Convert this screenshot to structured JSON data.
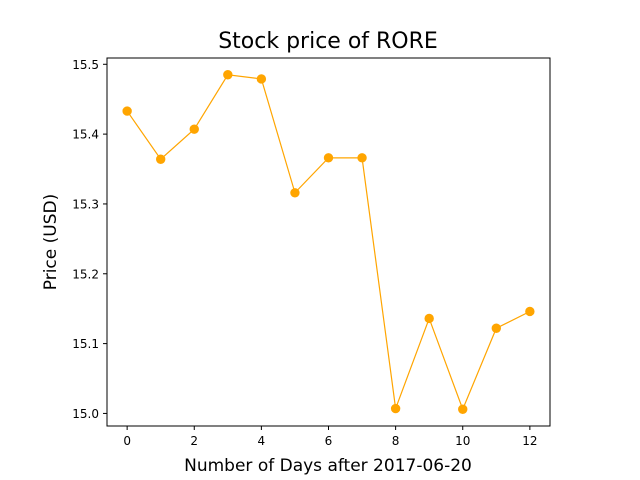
{
  "chart_data": {
    "type": "line",
    "title": "Stock price of RORE",
    "xlabel": "Number of Days after 2017-06-20",
    "ylabel": "Price (USD)",
    "x": [
      0,
      1,
      2,
      3,
      4,
      5,
      6,
      7,
      8,
      9,
      10,
      11,
      12
    ],
    "series": [
      {
        "values": [
          15.433,
          15.364,
          15.407,
          15.485,
          15.479,
          15.316,
          15.366,
          15.366,
          15.007,
          15.136,
          15.006,
          15.122,
          15.146
        ],
        "color": "#FFA500",
        "marker": "circle"
      }
    ],
    "xlim": [
      -0.6,
      12.6
    ],
    "ylim": [
      14.982,
      15.509
    ],
    "xticks": [
      0,
      2,
      4,
      6,
      8,
      10,
      12
    ],
    "xtick_labels": [
      "0",
      "2",
      "4",
      "6",
      "8",
      "10",
      "12"
    ],
    "yticks": [
      15.0,
      15.1,
      15.2,
      15.3,
      15.4,
      15.5
    ],
    "ytick_labels": [
      "15.0",
      "15.1",
      "15.2",
      "15.3",
      "15.4",
      "15.5"
    ],
    "grid": false,
    "legend": "none"
  }
}
